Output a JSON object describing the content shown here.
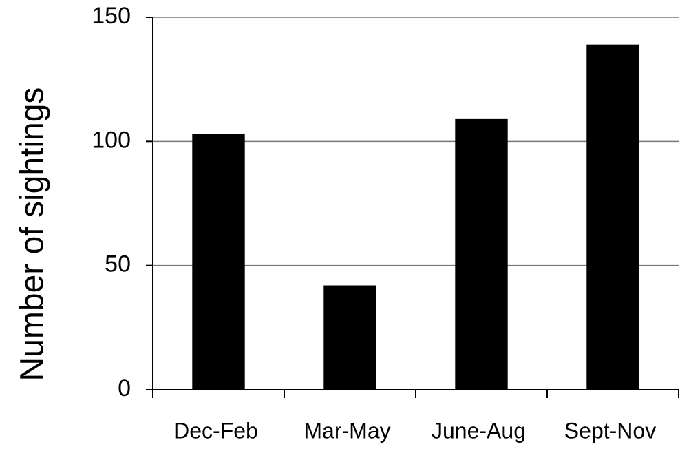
{
  "chart_data": {
    "type": "bar",
    "y_label": "Number of sightings",
    "categories": [
      "Dec-Feb",
      "Mar-May",
      "June-Aug",
      "Sept-Nov"
    ],
    "values": [
      103,
      42,
      109,
      139
    ],
    "color": "#000000",
    "ylim": [
      0,
      150
    ],
    "yticks": [
      0,
      50,
      100,
      150
    ],
    "grid": true
  }
}
